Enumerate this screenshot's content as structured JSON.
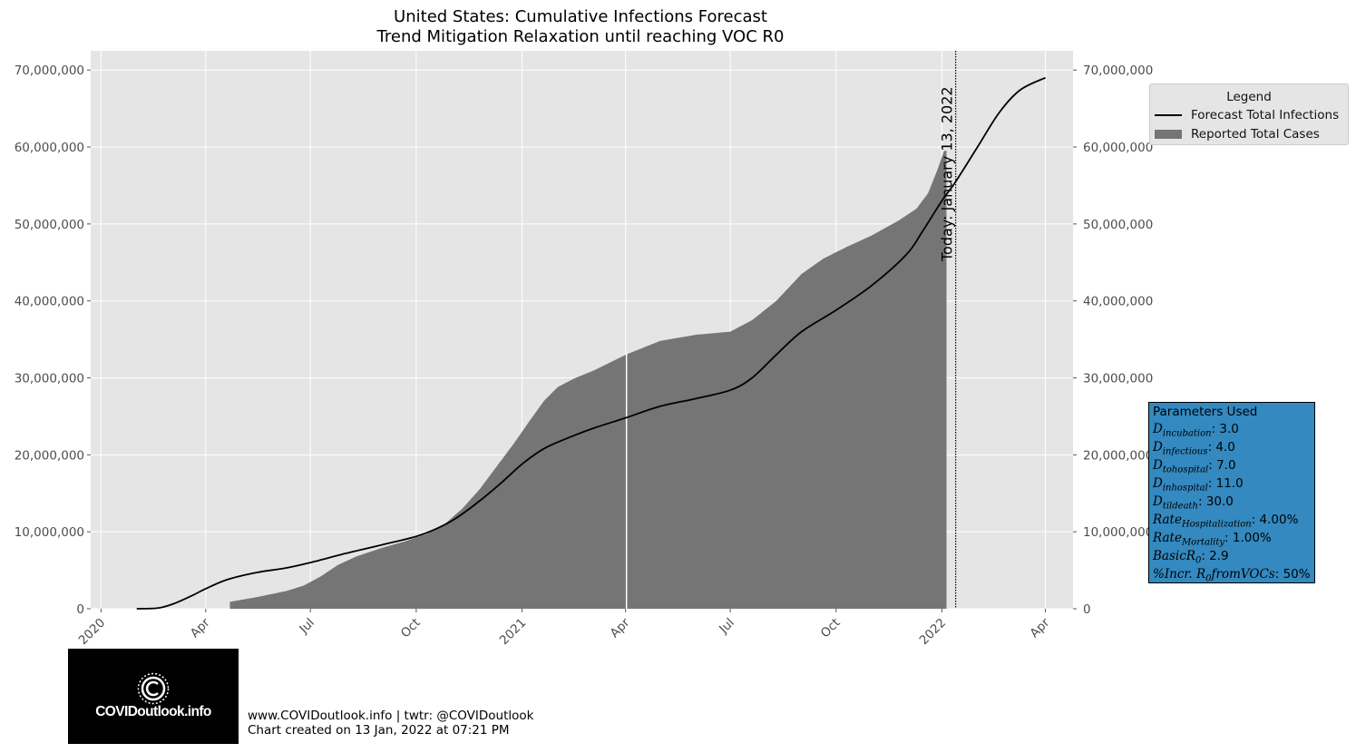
{
  "title_line1": "United States: Cumulative Infections Forecast",
  "title_line2": "Trend Mitigation Relaxation until reaching VOC R0",
  "chart_data": {
    "type": "bar+line",
    "x_axis": {
      "range": [
        "2019-12-23",
        "2022-04-25"
      ],
      "ticks": [
        "2020",
        "Apr",
        "Jul",
        "Oct",
        "2021",
        "Apr",
        "Jul",
        "Oct",
        "2022",
        "Apr"
      ],
      "tick_dates": [
        "2020-01-01",
        "2020-04-01",
        "2020-07-01",
        "2020-10-01",
        "2021-01-01",
        "2021-04-01",
        "2021-07-01",
        "2021-10-01",
        "2022-01-01",
        "2022-04-01"
      ]
    },
    "y_axis": {
      "range": [
        0,
        72500000
      ],
      "ticks": [
        0,
        10000000,
        20000000,
        30000000,
        40000000,
        50000000,
        60000000,
        70000000
      ],
      "tick_labels": [
        "0",
        "10,000,000",
        "20,000,000",
        "30,000,000",
        "40,000,000",
        "50,000,000",
        "60,000,000",
        "70,000,000"
      ],
      "mirrored_right": true
    },
    "grid": true,
    "series": [
      {
        "name": "Forecast Total Infections",
        "kind": "line",
        "color": "#000000",
        "points": [
          [
            "2020-02-01",
            0
          ],
          [
            "2020-02-20",
            100000
          ],
          [
            "2020-03-05",
            700000
          ],
          [
            "2020-03-20",
            1700000
          ],
          [
            "2020-04-01",
            2600000
          ],
          [
            "2020-04-20",
            3800000
          ],
          [
            "2020-05-15",
            4700000
          ],
          [
            "2020-06-10",
            5300000
          ],
          [
            "2020-07-01",
            6000000
          ],
          [
            "2020-08-01",
            7200000
          ],
          [
            "2020-09-01",
            8300000
          ],
          [
            "2020-10-01",
            9400000
          ],
          [
            "2020-10-20",
            10500000
          ],
          [
            "2020-11-05",
            11800000
          ],
          [
            "2020-11-25",
            14000000
          ],
          [
            "2020-12-15",
            16500000
          ],
          [
            "2021-01-01",
            18800000
          ],
          [
            "2021-01-20",
            20800000
          ],
          [
            "2021-02-10",
            22200000
          ],
          [
            "2021-03-05",
            23500000
          ],
          [
            "2021-04-01",
            24800000
          ],
          [
            "2021-05-01",
            26300000
          ],
          [
            "2021-06-01",
            27300000
          ],
          [
            "2021-07-01",
            28400000
          ],
          [
            "2021-07-20",
            30000000
          ],
          [
            "2021-08-10",
            33000000
          ],
          [
            "2021-09-01",
            36000000
          ],
          [
            "2021-10-01",
            38800000
          ],
          [
            "2021-11-01",
            42000000
          ],
          [
            "2021-12-01",
            46000000
          ],
          [
            "2021-12-15",
            49000000
          ],
          [
            "2022-01-01",
            53000000
          ],
          [
            "2022-01-13",
            55500000
          ],
          [
            "2022-02-01",
            60000000
          ],
          [
            "2022-02-20",
            64500000
          ],
          [
            "2022-03-10",
            67400000
          ],
          [
            "2022-04-01",
            69000000
          ]
        ]
      },
      {
        "name": "Reported Total Cases",
        "kind": "bar",
        "color": "#757575",
        "points": [
          [
            "2020-04-22",
            900000
          ],
          [
            "2020-05-15",
            1500000
          ],
          [
            "2020-06-10",
            2300000
          ],
          [
            "2020-06-25",
            3000000
          ],
          [
            "2020-07-10",
            4200000
          ],
          [
            "2020-07-25",
            5700000
          ],
          [
            "2020-08-10",
            6800000
          ],
          [
            "2020-09-01",
            7900000
          ],
          [
            "2020-09-20",
            8700000
          ],
          [
            "2020-10-10",
            9700000
          ],
          [
            "2020-10-25",
            10900000
          ],
          [
            "2020-11-10",
            13000000
          ],
          [
            "2020-11-25",
            15500000
          ],
          [
            "2020-12-10",
            18500000
          ],
          [
            "2020-12-25",
            21500000
          ],
          [
            "2021-01-08",
            24500000
          ],
          [
            "2021-01-20",
            27000000
          ],
          [
            "2021-02-01",
            28800000
          ],
          [
            "2021-02-15",
            29900000
          ],
          [
            "2021-03-05",
            31000000
          ],
          [
            "2021-04-01",
            33000000
          ],
          [
            "2021-05-01",
            34800000
          ],
          [
            "2021-06-01",
            35600000
          ],
          [
            "2021-07-01",
            36000000
          ],
          [
            "2021-07-20",
            37500000
          ],
          [
            "2021-08-10",
            40000000
          ],
          [
            "2021-09-01",
            43500000
          ],
          [
            "2021-09-20",
            45500000
          ],
          [
            "2021-10-10",
            47000000
          ],
          [
            "2021-11-01",
            48500000
          ],
          [
            "2021-11-25",
            50500000
          ],
          [
            "2021-12-10",
            52000000
          ],
          [
            "2021-12-20",
            54000000
          ],
          [
            "2021-12-28",
            57000000
          ],
          [
            "2022-01-03",
            59500000
          ],
          [
            "2022-01-05",
            59500000
          ]
        ]
      }
    ],
    "annotation": {
      "date": "2022-01-13",
      "text": "Today: January 13, 2022",
      "style": "dotted vertical line"
    },
    "legend": {
      "title": "Legend",
      "placement": "top-right, outside plot",
      "entries": [
        "Forecast Total Infections",
        "Reported Total Cases"
      ]
    }
  },
  "params_box": {
    "title": "Parameters Used",
    "rows": [
      {
        "sym": "D",
        "sub": "incubation",
        "value": ": 3.0"
      },
      {
        "sym": "D",
        "sub": "infectious",
        "value": ": 4.0"
      },
      {
        "sym": "D",
        "sub": "tohospital",
        "value": ": 7.0"
      },
      {
        "sym": "D",
        "sub": "inhospital",
        "value": ": 11.0"
      },
      {
        "sym": "D",
        "sub": "tildeath",
        "value": ": 30.0"
      },
      {
        "sym": "Rate",
        "sub": "Hospitalization",
        "value": ": 4.00%"
      },
      {
        "sym": "Rate",
        "sub": "Mortality",
        "value": ": 1.00%"
      },
      {
        "sym": "BasicR",
        "sub": "0",
        "value": ": 2.9"
      },
      {
        "sym": "%Incr. R",
        "sub": "0",
        "tail": "fromVOCs",
        "value": ": 50%"
      }
    ],
    "bg_color": "#3389c0"
  },
  "logo": {
    "text": "COVIDoutlook.info",
    "emblem": "virus-c-icon"
  },
  "footer": {
    "line1": "www.COVIDoutlook.info | twtr: @COVIDoutlook",
    "line2": "Chart created on 13 Jan, 2022 at 07:21 PM"
  }
}
